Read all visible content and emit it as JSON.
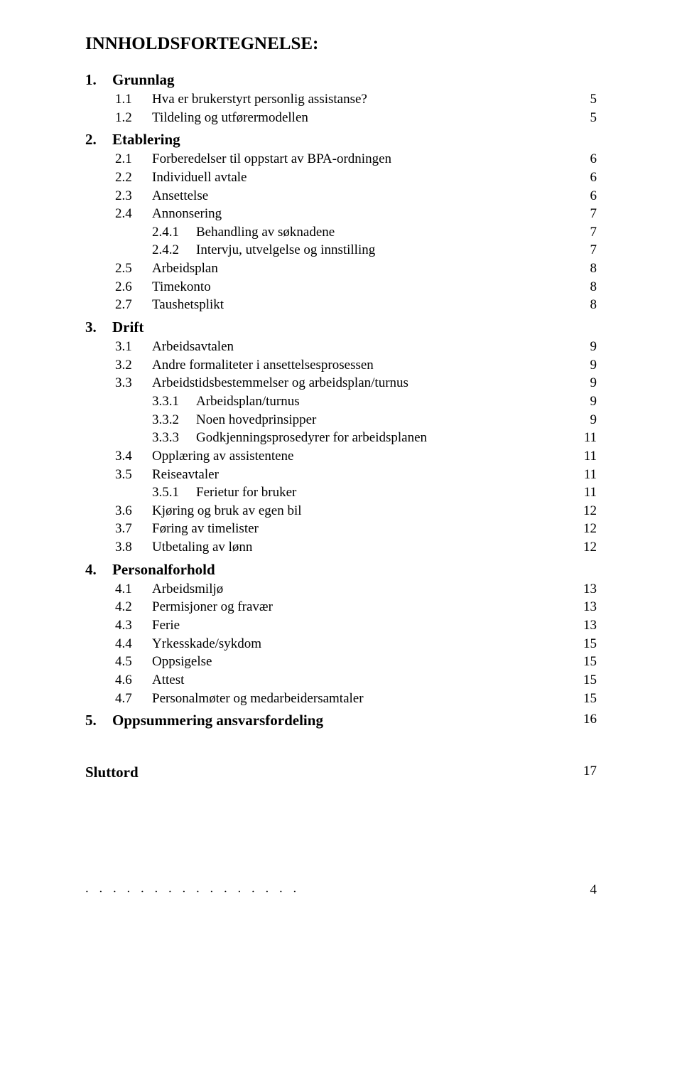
{
  "title": "INNHOLDSFORTEGNELSE:",
  "toc": {
    "s1": {
      "num": "1.",
      "label": "Grunnlag"
    },
    "s1_1": {
      "num": "1.1",
      "label": "Hva er brukerstyrt personlig assistanse?",
      "page": "5"
    },
    "s1_2": {
      "num": "1.2",
      "label": "Tildeling og utførermodellen",
      "page": "5"
    },
    "s2": {
      "num": "2.",
      "label": "Etablering"
    },
    "s2_1": {
      "num": "2.1",
      "label": "Forberedelser til oppstart av BPA-ordningen",
      "page": "6"
    },
    "s2_2": {
      "num": "2.2",
      "label": "Individuell avtale",
      "page": "6"
    },
    "s2_3": {
      "num": "2.3",
      "label": "Ansettelse",
      "page": "6"
    },
    "s2_4": {
      "num": "2.4",
      "label": "Annonsering",
      "page": "7"
    },
    "s2_4_1": {
      "num": "2.4.1",
      "label": "Behandling av søknadene",
      "page": "7"
    },
    "s2_4_2": {
      "num": "2.4.2",
      "label": "Intervju, utvelgelse og innstilling",
      "page": "7"
    },
    "s2_5": {
      "num": "2.5",
      "label": "Arbeidsplan",
      "page": "8"
    },
    "s2_6": {
      "num": "2.6",
      "label": "Timekonto",
      "page": "8"
    },
    "s2_7": {
      "num": "2.7",
      "label": "Taushetsplikt",
      "page": "8"
    },
    "s3": {
      "num": "3.",
      "label": "Drift"
    },
    "s3_1": {
      "num": "3.1",
      "label": "Arbeidsavtalen",
      "page": "9"
    },
    "s3_2": {
      "num": "3.2",
      "label": "Andre formaliteter i ansettelsesprosessen",
      "page": "9"
    },
    "s3_3": {
      "num": "3.3",
      "label": "Arbeidstidsbestemmelser og arbeidsplan/turnus",
      "page": "9"
    },
    "s3_3_1": {
      "num": "3.3.1",
      "label": "Arbeidsplan/turnus",
      "page": "9"
    },
    "s3_3_2": {
      "num": "3.3.2",
      "label": "Noen hovedprinsipper",
      "page": "9"
    },
    "s3_3_3": {
      "num": "3.3.3",
      "label": "Godkjenningsprosedyrer for arbeidsplanen",
      "page": "11"
    },
    "s3_4": {
      "num": "3.4",
      "label": "Opplæring av assistentene",
      "page": "11"
    },
    "s3_5": {
      "num": "3.5",
      "label": "Reiseavtaler",
      "page": "11"
    },
    "s3_5_1": {
      "num": "3.5.1",
      "label": "Ferietur for bruker",
      "page": "11"
    },
    "s3_6": {
      "num": "3.6",
      "label": "Kjøring og bruk av egen bil",
      "page": "12"
    },
    "s3_7": {
      "num": "3.7",
      "label": "Føring av timelister",
      "page": "12"
    },
    "s3_8": {
      "num": "3.8",
      "label": "Utbetaling av lønn",
      "page": "12"
    },
    "s4": {
      "num": "4.",
      "label": "Personalforhold"
    },
    "s4_1": {
      "num": "4.1",
      "label": "Arbeidsmiljø",
      "page": "13"
    },
    "s4_2": {
      "num": "4.2",
      "label": "Permisjoner og fravær",
      "page": "13"
    },
    "s4_3": {
      "num": "4.3",
      "label": "Ferie",
      "page": "13"
    },
    "s4_4": {
      "num": "4.4",
      "label": "Yrkesskade/sykdom",
      "page": "15"
    },
    "s4_5": {
      "num": "4.5",
      "label": "Oppsigelse",
      "page": "15"
    },
    "s4_6": {
      "num": "4.6",
      "label": "Attest",
      "page": "15"
    },
    "s4_7": {
      "num": "4.7",
      "label": "Personalmøter og medarbeidersamtaler",
      "page": "15"
    },
    "s5": {
      "num": "5.",
      "label": "Oppsummering ansvarsfordeling",
      "page": "16"
    }
  },
  "sluttord": {
    "label": "Sluttord",
    "page": "17"
  },
  "dots": ". . . . . . . . . . . . . . . .",
  "footer_page": "4"
}
